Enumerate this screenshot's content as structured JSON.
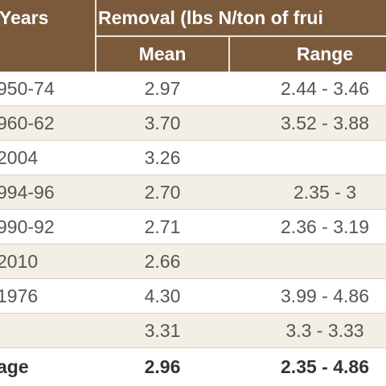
{
  "header": {
    "col0": "Years",
    "group": "Removal (lbs N/ton of frui",
    "col1": "Mean",
    "col2": "Range"
  },
  "rows": [
    {
      "years": "950-74",
      "mean": "2.97",
      "range": "2.44 - 3.46"
    },
    {
      "years": "960-62",
      "mean": "3.70",
      "range": "3.52 - 3.88"
    },
    {
      "years": "2004",
      "mean": "3.26",
      "range": ""
    },
    {
      "years": "994-96",
      "mean": "2.70",
      "range": "2.35 - 3"
    },
    {
      "years": "990-92",
      "mean": "2.71",
      "range": "2.36 - 3.19"
    },
    {
      "years": "2010",
      "mean": "2.66",
      "range": ""
    },
    {
      "years": "1976",
      "mean": "4.30",
      "range": "3.99 - 4.86"
    },
    {
      "years": "",
      "mean": "3.31",
      "range": "3.3 - 3.33"
    }
  ],
  "average": {
    "label": "age",
    "mean": "2.96",
    "range": "2.35 - 4.86"
  }
}
